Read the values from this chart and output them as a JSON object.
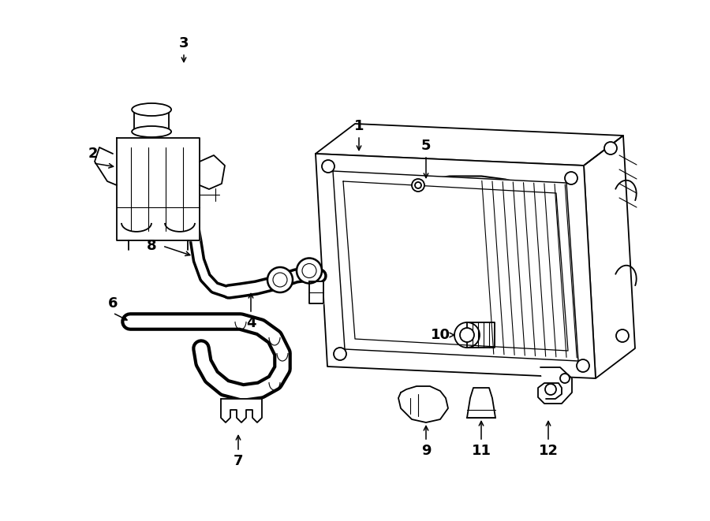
{
  "bg_color": "#ffffff",
  "line_color": "#000000",
  "fig_width": 9.0,
  "fig_height": 6.61,
  "dpi": 100,
  "lw": 1.3
}
